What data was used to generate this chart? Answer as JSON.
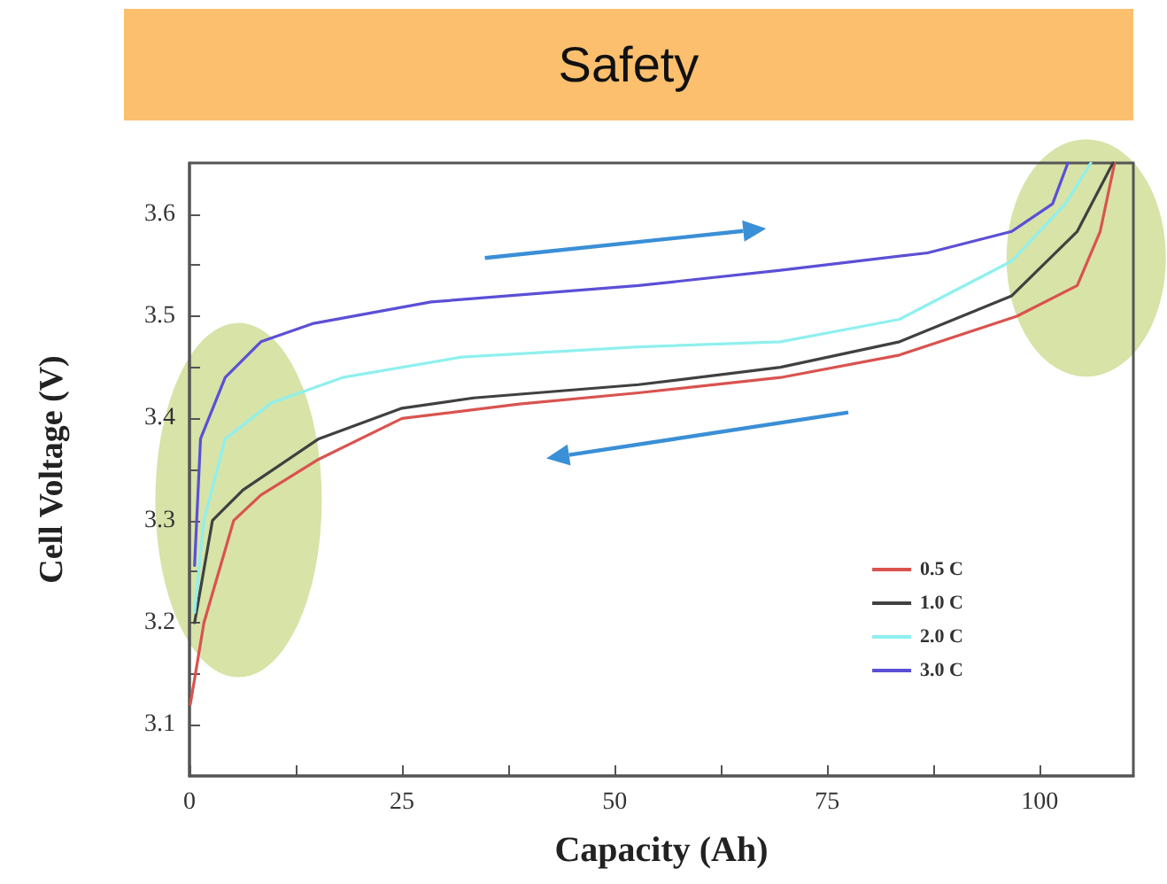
{
  "chart_data": {
    "type": "line",
    "title": "Safety",
    "xlabel": "Capacity (Ah)",
    "ylabel": "Cell Voltage (V)",
    "xlim": [
      0,
      111
    ],
    "ylim": [
      3.05,
      3.65
    ],
    "xticks": [
      0,
      {
        "value": 12.5,
        "label": null
      },
      25,
      {
        "value": 37.5,
        "label": null
      },
      50,
      {
        "value": 62.5,
        "label": null
      },
      75,
      {
        "value": 87.5,
        "label": null
      },
      100
    ],
    "yticks": [
      3.1,
      {
        "value": 3.15,
        "label": null
      },
      3.2,
      {
        "value": 3.25,
        "label": null
      },
      3.3,
      {
        "value": 3.35,
        "label": null
      },
      3.4,
      {
        "value": 3.45,
        "label": null
      },
      3.5,
      {
        "value": 3.55,
        "label": null
      },
      3.6
    ],
    "grid": false,
    "legend": "bottom right",
    "marker": "none",
    "line_style": "solid",
    "series": [
      {
        "name": "0.5 C",
        "color": "#d9534f",
        "x": [
          0.1,
          1.7,
          5.2,
          8.4,
          15.2,
          25,
          38.8,
          52.8,
          69.5,
          83.5,
          97.3,
          104.4,
          107.1,
          108.8
        ],
        "values": [
          3.12,
          3.2,
          3.3,
          3.325,
          3.36,
          3.4,
          3.414,
          3.425,
          3.44,
          3.462,
          3.5,
          3.53,
          3.583,
          3.65
        ]
      },
      {
        "name": "1.0 C",
        "color": "#404040",
        "x": [
          0.6,
          2.7,
          6.3,
          15.2,
          25,
          33.4,
          52.8,
          69.5,
          83.5,
          96.7,
          104.4,
          108.6
        ],
        "values": [
          3.2,
          3.3,
          3.33,
          3.38,
          3.41,
          3.42,
          3.433,
          3.45,
          3.475,
          3.52,
          3.583,
          3.65
        ]
      },
      {
        "name": "2.0 C",
        "color": "#8ff0ee",
        "x": [
          0.6,
          1.7,
          4.2,
          9.6,
          18,
          32,
          52.8,
          69.5,
          83.5,
          96.7,
          103,
          106
        ],
        "values": [
          3.21,
          3.3,
          3.38,
          3.415,
          3.44,
          3.46,
          3.47,
          3.475,
          3.497,
          3.554,
          3.61,
          3.65
        ]
      },
      {
        "name": "3.0 C",
        "color": "#5b4fd6",
        "x": [
          0.6,
          1.3,
          4.2,
          8.4,
          14.6,
          28.4,
          52.8,
          69.5,
          86.8,
          96.7,
          101.5,
          103.3
        ],
        "values": [
          3.256,
          3.38,
          3.44,
          3.475,
          3.493,
          3.514,
          3.53,
          3.545,
          3.562,
          3.583,
          3.61,
          3.65
        ]
      }
    ]
  }
}
